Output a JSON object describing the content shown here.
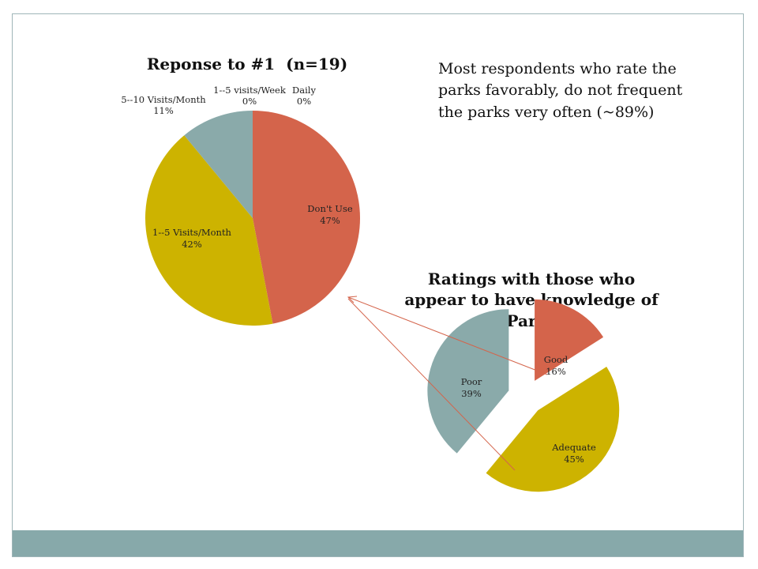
{
  "colors": {
    "dont_use": "#d4644b",
    "visits_1_5_month": "#cdb300",
    "visits_5_10_month": "#8aaaaa",
    "frame": "#9fb5b8",
    "footer": "#87a9aa",
    "arrow": "#d4644b"
  },
  "note": {
    "lines": [
      "Most respondents who rate the",
      "parks favorably, do not frequent",
      "the parks very often (~89%)"
    ]
  },
  "chart_data": [
    {
      "type": "pie",
      "title": "Reponse to #1  (n=19)",
      "slices": [
        {
          "label": "Don't Use",
          "value": 47,
          "display": "47%"
        },
        {
          "label": "1--5 Visits/Month",
          "value": 42,
          "display": "42%"
        },
        {
          "label": "5--10 Visits/Month",
          "value": 11,
          "display": "11%"
        },
        {
          "label": "1--5 visits/Week",
          "value": 0,
          "display": "0%"
        },
        {
          "label": "Daily",
          "value": 0,
          "display": "0%"
        }
      ]
    },
    {
      "type": "pie",
      "title_lines": [
        "Ratings with those who",
        "appear to have knowledge of",
        "Parks"
      ],
      "exploded": true,
      "slices": [
        {
          "label": "Good",
          "value": 16,
          "display": "16%"
        },
        {
          "label": "Adequate",
          "value": 45,
          "display": "45%"
        },
        {
          "label": "Poor",
          "value": 39,
          "display": "39%"
        }
      ]
    }
  ]
}
